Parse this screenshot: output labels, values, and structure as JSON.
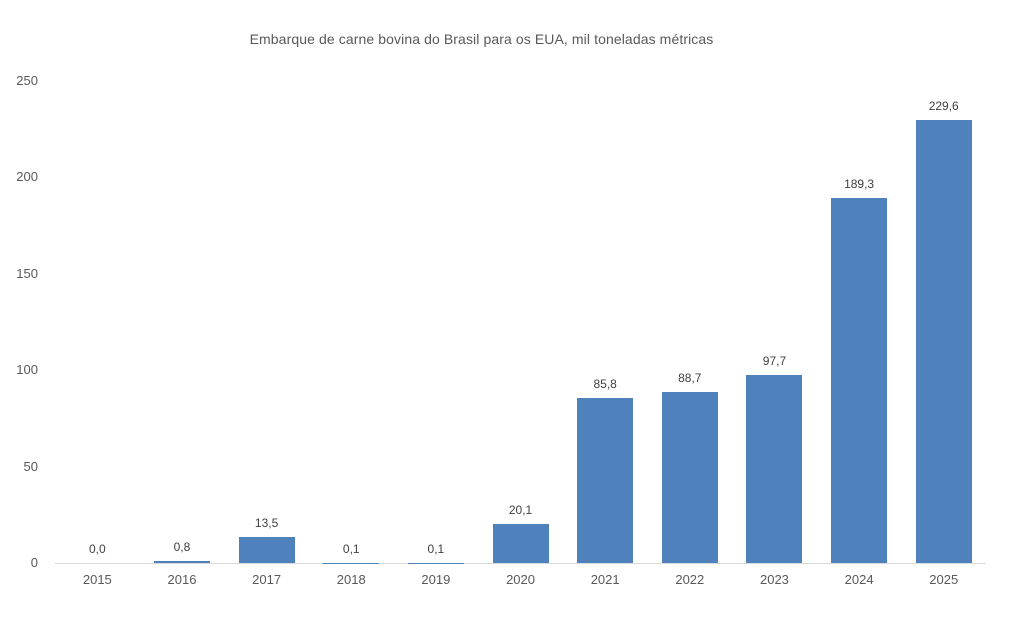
{
  "title": "Embarque de carne bovina do Brasil para os EUA, mil toneladas métricas",
  "colors": {
    "bar": "#4F81BD",
    "title_text": "#595959",
    "axis_text": "#595959",
    "data_label_text": "#404040",
    "axis_line": "#D9D9D9",
    "background": "#FFFFFF"
  },
  "chart_data": {
    "type": "bar",
    "title": "Embarque de carne bovina do Brasil para os EUA, mil toneladas métricas",
    "categories": [
      "2015",
      "2016",
      "2017",
      "2018",
      "2019",
      "2020",
      "2021",
      "2022",
      "2023",
      "2024",
      "2025"
    ],
    "values": [
      0.0,
      0.8,
      13.5,
      0.1,
      0.1,
      20.1,
      85.8,
      88.7,
      97.7,
      189.3,
      229.6
    ],
    "data_labels": [
      "0,0",
      "0,8",
      "13,5",
      "0,1",
      "0,1",
      "20,1",
      "85,8",
      "88,7",
      "97,7",
      "189,3",
      "229,6"
    ],
    "xlabel": "",
    "ylabel": "",
    "ylim": [
      0,
      250
    ],
    "y_ticks": [
      0,
      50,
      100,
      150,
      200,
      250
    ],
    "y_tick_labels": [
      "0",
      "50",
      "100",
      "150",
      "200",
      "250"
    ],
    "grid": false,
    "legend": "none",
    "decimal_separator": ","
  }
}
